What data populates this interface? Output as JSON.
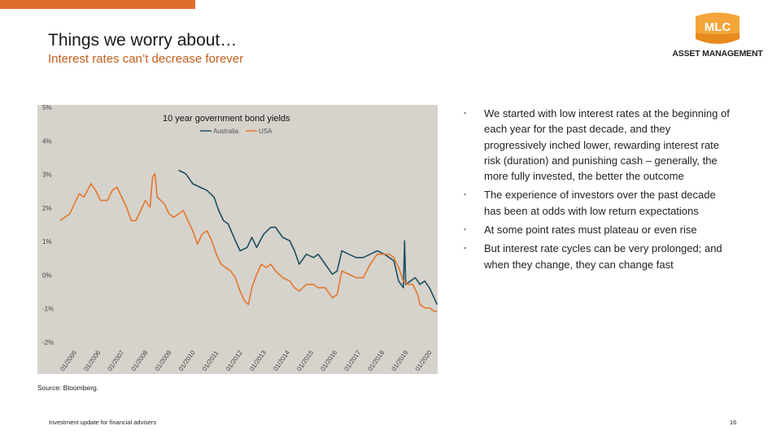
{
  "header": {
    "title": "Things we worry about…",
    "subtitle": "Interest rates can’t decrease forever"
  },
  "logo": {
    "badge": "MLC",
    "text": "ASSET MANAGEMENT"
  },
  "colors": {
    "accent": "#e06e2b",
    "australia": "#1f4e5f",
    "usa": "#e2772f",
    "plot_bg": "#d6d3cc"
  },
  "chart_data": {
    "type": "line",
    "title": "10 year government bond yields",
    "ylim": [
      -2,
      5
    ],
    "yticks": [
      "5%",
      "4%",
      "3%",
      "2%",
      "1%",
      "0%",
      "-1%",
      "-2%"
    ],
    "xlim": [
      2005,
      2020.95
    ],
    "xticks": [
      "01/2005",
      "01/2006",
      "01/2007",
      "01/2008",
      "01/2009",
      "01/2010",
      "01/2011",
      "01/2012",
      "01/2013",
      "01/2014",
      "01/2015",
      "01/2016",
      "01/2017",
      "01/2018",
      "01/2019",
      "01/2020"
    ],
    "series": [
      {
        "name": "Australia",
        "color": "#1f4e5f",
        "points": [
          [
            2010.0,
            3.1
          ],
          [
            2010.3,
            3.0
          ],
          [
            2010.6,
            2.7
          ],
          [
            2010.9,
            2.6
          ],
          [
            2011.2,
            2.5
          ],
          [
            2011.5,
            2.3
          ],
          [
            2011.7,
            1.9
          ],
          [
            2011.9,
            1.6
          ],
          [
            2012.1,
            1.5
          ],
          [
            2012.4,
            1.0
          ],
          [
            2012.6,
            0.7
          ],
          [
            2012.9,
            0.8
          ],
          [
            2013.1,
            1.1
          ],
          [
            2013.3,
            0.8
          ],
          [
            2013.6,
            1.2
          ],
          [
            2013.9,
            1.4
          ],
          [
            2014.1,
            1.4
          ],
          [
            2014.4,
            1.1
          ],
          [
            2014.7,
            1.0
          ],
          [
            2014.9,
            0.7
          ],
          [
            2015.1,
            0.3
          ],
          [
            2015.4,
            0.6
          ],
          [
            2015.7,
            0.5
          ],
          [
            2015.9,
            0.6
          ],
          [
            2016.2,
            0.3
          ],
          [
            2016.5,
            0.0
          ],
          [
            2016.7,
            0.1
          ],
          [
            2016.9,
            0.7
          ],
          [
            2017.2,
            0.6
          ],
          [
            2017.5,
            0.5
          ],
          [
            2017.8,
            0.5
          ],
          [
            2018.1,
            0.6
          ],
          [
            2018.4,
            0.7
          ],
          [
            2018.7,
            0.6
          ],
          [
            2018.9,
            0.5
          ],
          [
            2019.1,
            0.4
          ],
          [
            2019.3,
            -0.2
          ],
          [
            2019.5,
            -0.4
          ],
          [
            2019.55,
            1.0
          ],
          [
            2019.6,
            -0.3
          ],
          [
            2019.8,
            -0.2
          ],
          [
            2020.0,
            -0.1
          ],
          [
            2020.2,
            -0.3
          ],
          [
            2020.4,
            -0.2
          ],
          [
            2020.6,
            -0.4
          ],
          [
            2020.8,
            -0.7
          ],
          [
            2020.92,
            -0.9
          ]
        ]
      },
      {
        "name": "USA",
        "color": "#e2772f",
        "points": [
          [
            2005.0,
            1.6
          ],
          [
            2005.2,
            1.7
          ],
          [
            2005.4,
            1.8
          ],
          [
            2005.6,
            2.1
          ],
          [
            2005.8,
            2.4
          ],
          [
            2006.0,
            2.3
          ],
          [
            2006.3,
            2.7
          ],
          [
            2006.5,
            2.5
          ],
          [
            2006.7,
            2.2
          ],
          [
            2007.0,
            2.2
          ],
          [
            2007.2,
            2.5
          ],
          [
            2007.4,
            2.6
          ],
          [
            2007.6,
            2.3
          ],
          [
            2007.8,
            2.0
          ],
          [
            2008.0,
            1.6
          ],
          [
            2008.2,
            1.6
          ],
          [
            2008.4,
            1.9
          ],
          [
            2008.6,
            2.2
          ],
          [
            2008.8,
            2.0
          ],
          [
            2008.9,
            2.9
          ],
          [
            2009.0,
            3.0
          ],
          [
            2009.1,
            2.3
          ],
          [
            2009.4,
            2.1
          ],
          [
            2009.6,
            1.8
          ],
          [
            2009.8,
            1.7
          ],
          [
            2010.0,
            1.8
          ],
          [
            2010.2,
            1.9
          ],
          [
            2010.4,
            1.6
          ],
          [
            2010.6,
            1.3
          ],
          [
            2010.8,
            0.9
          ],
          [
            2011.0,
            1.2
          ],
          [
            2011.2,
            1.3
          ],
          [
            2011.4,
            1.0
          ],
          [
            2011.6,
            0.6
          ],
          [
            2011.8,
            0.3
          ],
          [
            2012.0,
            0.2
          ],
          [
            2012.2,
            0.1
          ],
          [
            2012.4,
            -0.1
          ],
          [
            2012.6,
            -0.5
          ],
          [
            2012.8,
            -0.8
          ],
          [
            2012.95,
            -0.9
          ],
          [
            2013.1,
            -0.4
          ],
          [
            2013.3,
            0.0
          ],
          [
            2013.5,
            0.3
          ],
          [
            2013.7,
            0.2
          ],
          [
            2013.9,
            0.3
          ],
          [
            2014.1,
            0.1
          ],
          [
            2014.4,
            -0.1
          ],
          [
            2014.7,
            -0.2
          ],
          [
            2014.9,
            -0.4
          ],
          [
            2015.1,
            -0.5
          ],
          [
            2015.4,
            -0.3
          ],
          [
            2015.7,
            -0.3
          ],
          [
            2015.9,
            -0.4
          ],
          [
            2016.2,
            -0.4
          ],
          [
            2016.5,
            -0.7
          ],
          [
            2016.7,
            -0.6
          ],
          [
            2016.9,
            0.1
          ],
          [
            2017.2,
            0.0
          ],
          [
            2017.5,
            -0.1
          ],
          [
            2017.8,
            -0.1
          ],
          [
            2018.1,
            0.3
          ],
          [
            2018.4,
            0.6
          ],
          [
            2018.7,
            0.6
          ],
          [
            2018.9,
            0.6
          ],
          [
            2019.1,
            0.5
          ],
          [
            2019.3,
            0.2
          ],
          [
            2019.5,
            -0.2
          ],
          [
            2019.7,
            -0.3
          ],
          [
            2019.9,
            -0.3
          ],
          [
            2020.1,
            -0.6
          ],
          [
            2020.2,
            -0.9
          ],
          [
            2020.4,
            -1.0
          ],
          [
            2020.6,
            -1.0
          ],
          [
            2020.8,
            -1.1
          ],
          [
            2020.92,
            -1.1
          ]
        ]
      }
    ],
    "legend": "top-center"
  },
  "bullets": [
    "We started with low interest rates at the beginning of each year for the past decade, and they progressively inched lower, rewarding interest rate risk (duration) and punishing cash – generally, the more fully invested, the better the outcome",
    "The experience of investors over the past decade has been at odds with low return expectations",
    "At some point rates must plateau or even rise",
    "But interest rate cycles can be very prolonged; and when they change, they can change fast"
  ],
  "footer": {
    "source": "Source: Bloomberg.",
    "left": "Investment update for financial advisers",
    "page": "16"
  }
}
